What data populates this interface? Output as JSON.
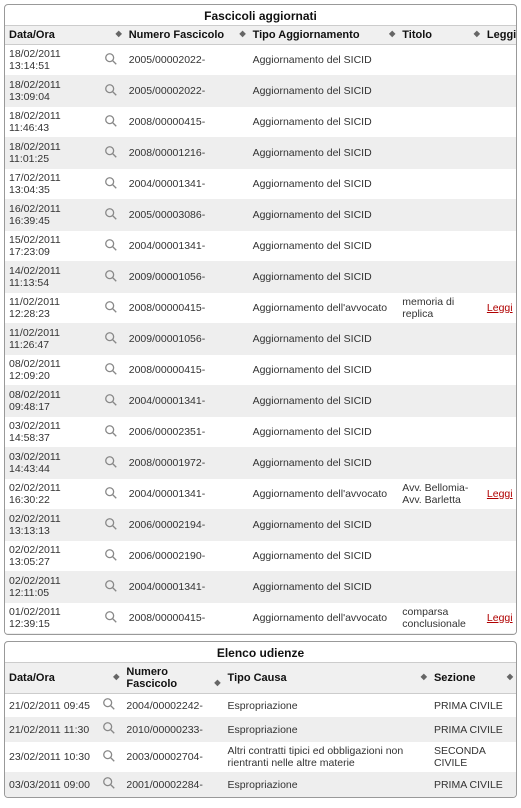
{
  "colors": {
    "link": "#b00000",
    "row_even": "#ffffff",
    "row_odd": "#eeeeee",
    "header_bg": "#f0f0f0",
    "border": "#999999",
    "text": "#333333"
  },
  "fascicoli": {
    "title": "Fascicoli aggiornati",
    "columns": {
      "data_ora": "Data/Ora",
      "numero_fascicolo": "Numero Fascicolo",
      "tipo_aggiornamento": "Tipo Aggiornamento",
      "titolo": "Titolo",
      "leggi": "Leggi"
    },
    "col_widths": {
      "data_ora": "90px",
      "icon": "26px",
      "numero": "120px",
      "tipo": "145px",
      "titolo": "82px",
      "leggi": "32px"
    },
    "leggi_label": "Leggi",
    "rows": [
      {
        "data_ora": "18/02/2011 13:14:51",
        "numero": "2005/00002022-",
        "tipo": "Aggiornamento del SICID",
        "titolo": "",
        "leggi": false
      },
      {
        "data_ora": "18/02/2011 13:09:04",
        "numero": "2005/00002022-",
        "tipo": "Aggiornamento del SICID",
        "titolo": "",
        "leggi": false
      },
      {
        "data_ora": "18/02/2011 11:46:43",
        "numero": "2008/00000415-",
        "tipo": "Aggiornamento del SICID",
        "titolo": "",
        "leggi": false
      },
      {
        "data_ora": "18/02/2011 11:01:25",
        "numero": "2008/00001216-",
        "tipo": "Aggiornamento del SICID",
        "titolo": "",
        "leggi": false
      },
      {
        "data_ora": "17/02/2011 13:04:35",
        "numero": "2004/00001341-",
        "tipo": "Aggiornamento del SICID",
        "titolo": "",
        "leggi": false
      },
      {
        "data_ora": "16/02/2011 16:39:45",
        "numero": "2005/00003086-",
        "tipo": "Aggiornamento del SICID",
        "titolo": "",
        "leggi": false
      },
      {
        "data_ora": "15/02/2011 17:23:09",
        "numero": "2004/00001341-",
        "tipo": "Aggiornamento del SICID",
        "titolo": "",
        "leggi": false
      },
      {
        "data_ora": "14/02/2011 11:13:54",
        "numero": "2009/00001056-",
        "tipo": "Aggiornamento del SICID",
        "titolo": "",
        "leggi": false
      },
      {
        "data_ora": "11/02/2011 12:28:23",
        "numero": "2008/00000415-",
        "tipo": "Aggiornamento dell'avvocato",
        "titolo": "memoria di replica",
        "leggi": true
      },
      {
        "data_ora": "11/02/2011 11:26:47",
        "numero": "2009/00001056-",
        "tipo": "Aggiornamento del SICID",
        "titolo": "",
        "leggi": false
      },
      {
        "data_ora": "08/02/2011 12:09:20",
        "numero": "2008/00000415-",
        "tipo": "Aggiornamento del SICID",
        "titolo": "",
        "leggi": false
      },
      {
        "data_ora": "08/02/2011 09:48:17",
        "numero": "2004/00001341-",
        "tipo": "Aggiornamento del SICID",
        "titolo": "",
        "leggi": false
      },
      {
        "data_ora": "03/02/2011 14:58:37",
        "numero": "2006/00002351-",
        "tipo": "Aggiornamento del SICID",
        "titolo": "",
        "leggi": false
      },
      {
        "data_ora": "03/02/2011 14:43:44",
        "numero": "2008/00001972-",
        "tipo": "Aggiornamento del SICID",
        "titolo": "",
        "leggi": false
      },
      {
        "data_ora": "02/02/2011 16:30:22",
        "numero": "2004/00001341-",
        "tipo": "Aggiornamento dell'avvocato",
        "titolo": "Avv. Bellomia- Avv. Barletta",
        "leggi": true
      },
      {
        "data_ora": "02/02/2011 13:13:13",
        "numero": "2006/00002194-",
        "tipo": "Aggiornamento del SICID",
        "titolo": "",
        "leggi": false
      },
      {
        "data_ora": "02/02/2011 13:05:27",
        "numero": "2006/00002190-",
        "tipo": "Aggiornamento del SICID",
        "titolo": "",
        "leggi": false
      },
      {
        "data_ora": "02/02/2011 12:11:05",
        "numero": "2004/00001341-",
        "tipo": "Aggiornamento del SICID",
        "titolo": "",
        "leggi": false
      },
      {
        "data_ora": "01/02/2011 12:39:15",
        "numero": "2008/00000415-",
        "tipo": "Aggiornamento dell'avvocato",
        "titolo": "comparsa conclusionale",
        "leggi": true
      }
    ]
  },
  "udienze": {
    "title": "Elenco udienze",
    "columns": {
      "data_ora": "Data/Ora",
      "numero_fascicolo": "Numero Fascicolo",
      "tipo_causa": "Tipo Causa",
      "sezione": "Sezione"
    },
    "col_widths": {
      "data_ora": "90px",
      "icon": "26px",
      "numero": "100px",
      "tipo": "204px",
      "sezione": "85px"
    },
    "rows": [
      {
        "data_ora": "21/02/2011 09:45",
        "numero": "2004/00002242-",
        "tipo": "Espropriazione",
        "sezione": "PRIMA CIVILE"
      },
      {
        "data_ora": "21/02/2011 11:30",
        "numero": "2010/00000233-",
        "tipo": "Espropriazione",
        "sezione": "PRIMA CIVILE"
      },
      {
        "data_ora": "23/02/2011 10:30",
        "numero": "2003/00002704-",
        "tipo": "Altri contratti tipici ed obbligazioni non rientranti nelle altre materie",
        "sezione": "SECONDA CIVILE"
      },
      {
        "data_ora": "03/03/2011 09:00",
        "numero": "2001/00002284-",
        "tipo": "Espropriazione",
        "sezione": "PRIMA CIVILE"
      }
    ]
  }
}
